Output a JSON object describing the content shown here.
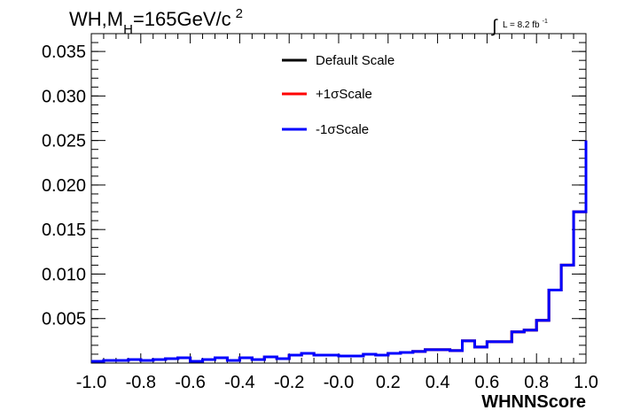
{
  "chart_data": {
    "type": "line",
    "style": "step-histogram",
    "title": {
      "prefix": "WH,M",
      "subscript": "H",
      "main": "=165GeV/c",
      "superscript": "2"
    },
    "luminosity": {
      "integral_symbol": "∫",
      "text": "L = 8.2 fb",
      "superscript": "-1"
    },
    "xlabel": "WHNNScore",
    "ylabel": "",
    "xlim": [
      -1.0,
      1.0
    ],
    "ylim": [
      0,
      0.037
    ],
    "x_ticks": [
      "-1.0",
      "-0.8",
      "-0.6",
      "-0.4",
      "-0.2",
      "-0.0",
      "0.2",
      "0.4",
      "0.6",
      "0.8",
      "1.0"
    ],
    "y_ticks": [
      "0.005",
      "0.010",
      "0.015",
      "0.020",
      "0.025",
      "0.030",
      "0.035"
    ],
    "bin_edges": [
      -1.0,
      -0.95,
      -0.9,
      -0.85,
      -0.8,
      -0.75,
      -0.7,
      -0.65,
      -0.6,
      -0.55,
      -0.5,
      -0.45,
      -0.4,
      -0.35,
      -0.3,
      -0.25,
      -0.2,
      -0.15,
      -0.1,
      -0.05,
      0.0,
      0.05,
      0.1,
      0.15,
      0.2,
      0.25,
      0.3,
      0.35,
      0.4,
      0.45,
      0.5,
      0.55,
      0.6,
      0.65,
      0.7,
      0.75,
      0.8,
      0.85,
      0.9,
      0.95,
      1.0
    ],
    "series": [
      {
        "name": "Default Scale",
        "color": "#000000",
        "values": [
          0.0002,
          0.0003,
          0.0003,
          0.0004,
          0.0003,
          0.0004,
          0.0005,
          0.0006,
          0.0002,
          0.0004,
          0.0006,
          0.0003,
          0.0006,
          0.0004,
          0.0007,
          0.0005,
          0.0009,
          0.0011,
          0.0009,
          0.0009,
          0.0008,
          0.0008,
          0.001,
          0.0009,
          0.0011,
          0.0012,
          0.0013,
          0.0015,
          0.0015,
          0.0014,
          0.0025,
          0.0018,
          0.0024,
          0.0024,
          0.0035,
          0.0037,
          0.0048,
          0.0082,
          0.011,
          0.017,
          0.025
        ]
      },
      {
        "name": "+1σScale",
        "color": "#ff0000",
        "values": [
          0.0002,
          0.0003,
          0.0003,
          0.0004,
          0.0003,
          0.0004,
          0.0005,
          0.0006,
          0.0002,
          0.0004,
          0.0006,
          0.0003,
          0.0006,
          0.0004,
          0.0007,
          0.0005,
          0.0009,
          0.0011,
          0.0009,
          0.0009,
          0.0008,
          0.0008,
          0.001,
          0.0009,
          0.0011,
          0.0012,
          0.0013,
          0.0015,
          0.0015,
          0.0014,
          0.0025,
          0.0018,
          0.0024,
          0.0024,
          0.0035,
          0.0037,
          0.0048,
          0.0082,
          0.011,
          0.017,
          0.025
        ]
      },
      {
        "name": "-1σScale",
        "color": "#0000ff",
        "values": [
          0.0002,
          0.0003,
          0.0003,
          0.0004,
          0.0003,
          0.0004,
          0.0005,
          0.0006,
          0.0002,
          0.0004,
          0.0006,
          0.0003,
          0.0006,
          0.0004,
          0.0007,
          0.0005,
          0.0009,
          0.0011,
          0.0009,
          0.0009,
          0.0008,
          0.0008,
          0.001,
          0.0009,
          0.0011,
          0.0012,
          0.0013,
          0.0015,
          0.0015,
          0.0014,
          0.0025,
          0.0018,
          0.0024,
          0.0024,
          0.0035,
          0.0037,
          0.0048,
          0.0082,
          0.011,
          0.017,
          0.025
        ]
      }
    ],
    "legend_position": "top-center",
    "grid": false
  }
}
